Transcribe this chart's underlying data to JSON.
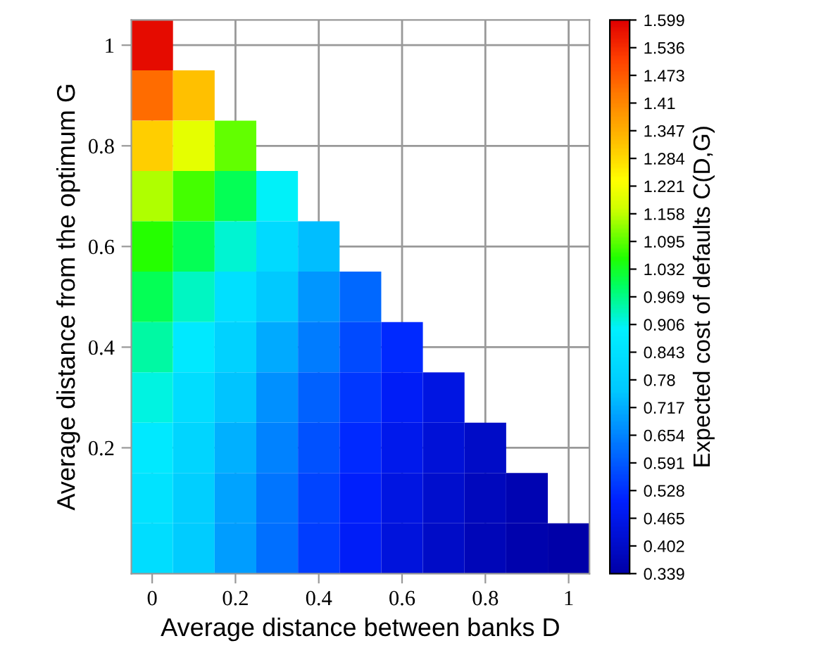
{
  "chart_data": {
    "type": "heatmap",
    "xlabel": "Average distance between banks D",
    "ylabel": "Average distance from the optimum G",
    "clabel": "Expected cost of defaults C(D,G)",
    "categories": [
      "0",
      null,
      "0.2",
      null,
      "0.4",
      null,
      "0.6",
      null,
      "0.8",
      null,
      "1"
    ],
    "y_categories": [
      "1",
      null,
      "0.8",
      null,
      "0.6",
      null,
      "0.4",
      null,
      "0.2",
      null,
      null
    ],
    "grid": true,
    "clim": [
      0.339,
      1.599
    ],
    "cticks": [
      0.339,
      0.402,
      0.465,
      0.528,
      0.591,
      0.654,
      0.717,
      0.78,
      0.843,
      0.906,
      0.969,
      1.032,
      1.095,
      1.158,
      1.221,
      1.284,
      1.347,
      1.41,
      1.473,
      1.536,
      1.599
    ],
    "cells": [
      [
        1.58,
        null,
        null,
        null,
        null,
        null,
        null,
        null,
        null,
        null,
        null
      ],
      [
        1.45,
        1.32,
        null,
        null,
        null,
        null,
        null,
        null,
        null,
        null,
        null
      ],
      [
        1.3,
        1.2,
        1.1,
        null,
        null,
        null,
        null,
        null,
        null,
        null,
        null
      ],
      [
        1.15,
        1.08,
        1.0,
        0.9,
        null,
        null,
        null,
        null,
        null,
        null,
        null
      ],
      [
        1.06,
        1.0,
        0.92,
        0.82,
        0.74,
        null,
        null,
        null,
        null,
        null,
        null
      ],
      [
        1.0,
        0.93,
        0.84,
        0.76,
        0.68,
        0.61,
        null,
        null,
        null,
        null,
        null
      ],
      [
        0.95,
        0.87,
        0.79,
        0.71,
        0.64,
        0.57,
        0.52,
        null,
        null,
        null,
        null
      ],
      [
        0.91,
        0.83,
        0.75,
        0.67,
        0.6,
        0.54,
        0.49,
        0.45,
        null,
        null,
        null
      ],
      [
        0.87,
        0.8,
        0.72,
        0.65,
        0.58,
        0.52,
        0.47,
        0.43,
        0.4,
        null,
        null
      ],
      [
        0.85,
        0.78,
        0.7,
        0.63,
        0.56,
        0.5,
        0.45,
        0.41,
        0.38,
        0.36,
        null
      ],
      [
        0.83,
        0.77,
        0.69,
        0.62,
        0.55,
        0.49,
        0.44,
        0.4,
        0.37,
        0.35,
        0.34
      ]
    ]
  }
}
